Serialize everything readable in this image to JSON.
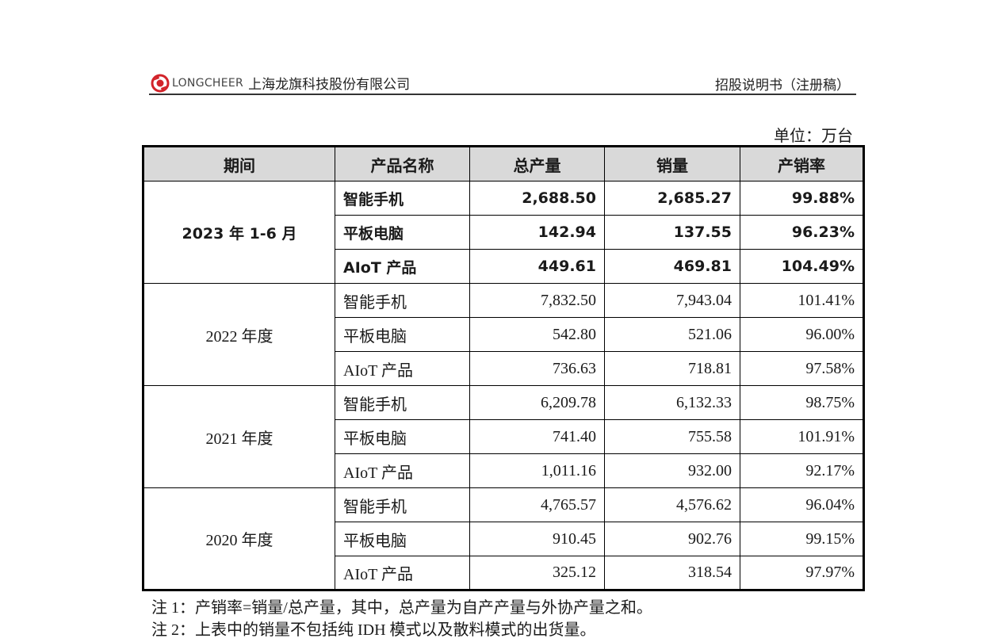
{
  "header": {
    "logo_text": "LONGCHEER",
    "company": "上海龙旗科技股份有限公司",
    "doc_title": "招股说明书（注册稿）"
  },
  "unit_label": "单位：万台",
  "table": {
    "columns": [
      "期间",
      "产品名称",
      "总产量",
      "销量",
      "产销率"
    ],
    "groups": [
      {
        "period": "2023 年 1-6 月",
        "bold": true,
        "rows": [
          {
            "product": "智能手机",
            "output": "2,688.50",
            "sales": "2,685.27",
            "rate": "99.88%"
          },
          {
            "product": "平板电脑",
            "output": "142.94",
            "sales": "137.55",
            "rate": "96.23%"
          },
          {
            "product": "AIoT 产品",
            "output": "449.61",
            "sales": "469.81",
            "rate": "104.49%"
          }
        ]
      },
      {
        "period": "2022 年度",
        "bold": false,
        "rows": [
          {
            "product": "智能手机",
            "output": "7,832.50",
            "sales": "7,943.04",
            "rate": "101.41%"
          },
          {
            "product": "平板电脑",
            "output": "542.80",
            "sales": "521.06",
            "rate": "96.00%"
          },
          {
            "product": "AIoT 产品",
            "output": "736.63",
            "sales": "718.81",
            "rate": "97.58%"
          }
        ]
      },
      {
        "period": "2021 年度",
        "bold": false,
        "rows": [
          {
            "product": "智能手机",
            "output": "6,209.78",
            "sales": "6,132.33",
            "rate": "98.75%"
          },
          {
            "product": "平板电脑",
            "output": "741.40",
            "sales": "755.58",
            "rate": "101.91%"
          },
          {
            "product": "AIoT 产品",
            "output": "1,011.16",
            "sales": "932.00",
            "rate": "92.17%"
          }
        ]
      },
      {
        "period": "2020 年度",
        "bold": false,
        "rows": [
          {
            "product": "智能手机",
            "output": "4,765.57",
            "sales": "4,576.62",
            "rate": "96.04%"
          },
          {
            "product": "平板电脑",
            "output": "910.45",
            "sales": "902.76",
            "rate": "99.15%"
          },
          {
            "product": "AIoT 产品",
            "output": "325.12",
            "sales": "318.54",
            "rate": "97.97%"
          }
        ]
      }
    ]
  },
  "notes": [
    "注 1：产销率=销量/总产量，其中，总产量为自产产量与外协产量之和。",
    "注 2：上表中的销量不包括纯 IDH 模式以及散料模式的出货量。"
  ],
  "colors": {
    "logo_red": "#d2232a",
    "header_fill": "#d9d9d9"
  }
}
